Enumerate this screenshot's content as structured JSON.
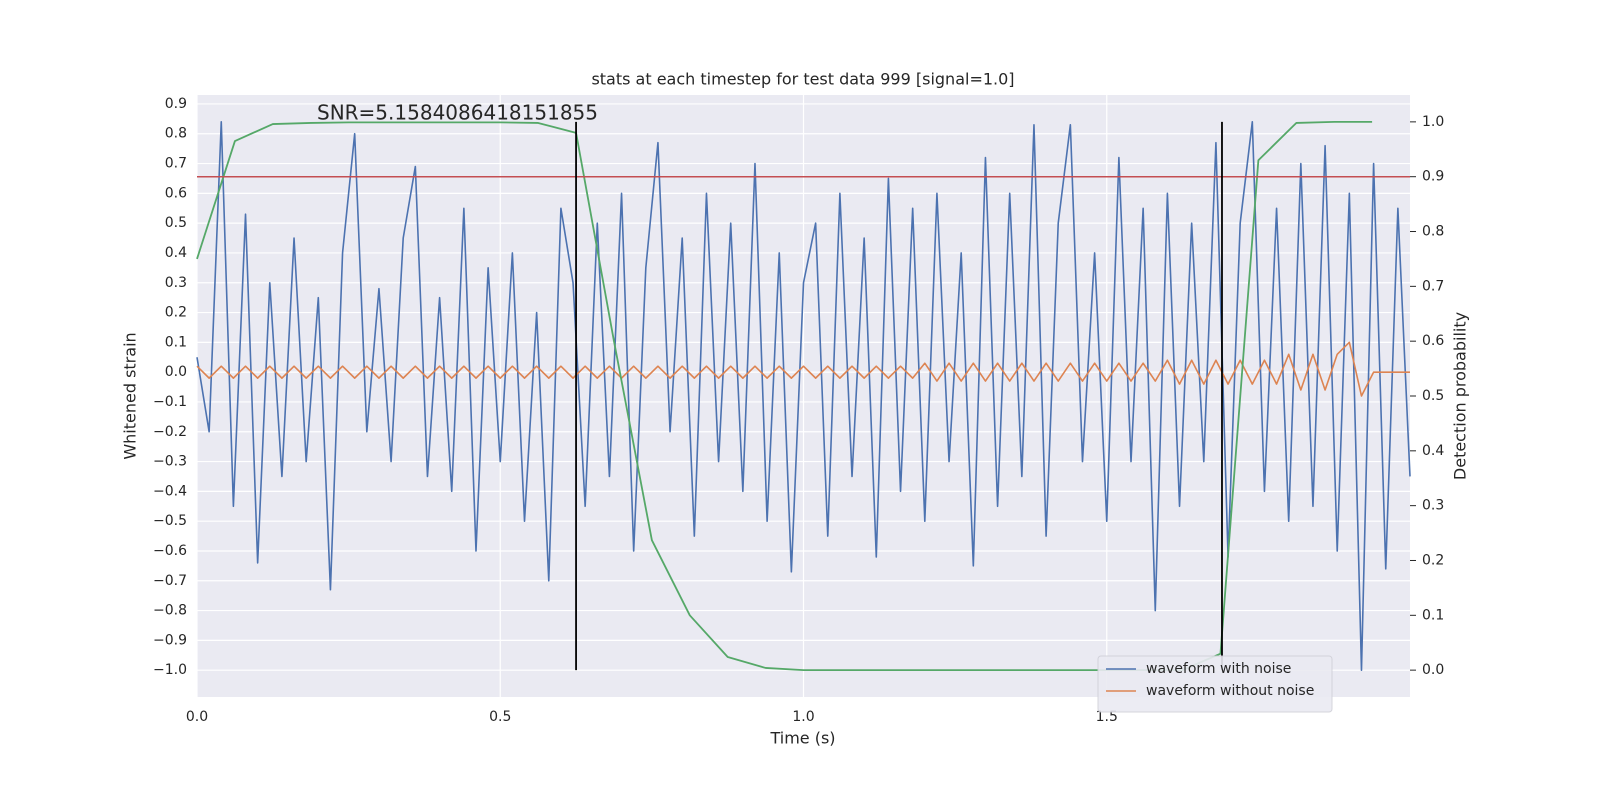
{
  "chart_data": {
    "type": "line",
    "title": "stats at each timestep for test data 999 [signal=1.0]",
    "annotation": "SNR=5.1584086418151855",
    "xlabel": "Time (s)",
    "ylabel": "Whitened strain",
    "y2label": "Detection probability",
    "xlim": [
      0,
      2.0
    ],
    "ylim": [
      -1.09,
      0.93
    ],
    "y2lim": [
      -0.049,
      1.049
    ],
    "xticks": [
      {
        "value": 0,
        "label": "0.0"
      },
      {
        "value": 0.5,
        "label": "0.5"
      },
      {
        "value": 1.0,
        "label": "1.0"
      },
      {
        "value": 1.5,
        "label": "1.5"
      }
    ],
    "yticks": [
      {
        "value": 0.9,
        "label": "0.9"
      },
      {
        "value": 0.8,
        "label": "0.8"
      },
      {
        "value": 0.7,
        "label": "0.7"
      },
      {
        "value": 0.6,
        "label": "0.6"
      },
      {
        "value": 0.5,
        "label": "0.5"
      },
      {
        "value": 0.4,
        "label": "0.4"
      },
      {
        "value": 0.3,
        "label": "0.3"
      },
      {
        "value": 0.2,
        "label": "0.2"
      },
      {
        "value": 0.1,
        "label": "0.1"
      },
      {
        "value": 0,
        "label": "0.0"
      },
      {
        "value": -0.1,
        "label": "−0.1"
      },
      {
        "value": -0.2,
        "label": "−0.2"
      },
      {
        "value": -0.3,
        "label": "−0.3"
      },
      {
        "value": -0.4,
        "label": "−0.4"
      },
      {
        "value": -0.5,
        "label": "−0.5"
      },
      {
        "value": -0.6,
        "label": "−0.6"
      },
      {
        "value": -0.7,
        "label": "−0.7"
      },
      {
        "value": -0.8,
        "label": "−0.8"
      },
      {
        "value": -0.9,
        "label": "−0.9"
      },
      {
        "value": -1.0,
        "label": "−1.0"
      }
    ],
    "y2ticks": [
      {
        "value": 0,
        "label": "0.0"
      },
      {
        "value": 0.1,
        "label": "0.1"
      },
      {
        "value": 0.2,
        "label": "0.2"
      },
      {
        "value": 0.3,
        "label": "0.3"
      },
      {
        "value": 0.4,
        "label": "0.4"
      },
      {
        "value": 0.5,
        "label": "0.5"
      },
      {
        "value": 0.6,
        "label": "0.6"
      },
      {
        "value": 0.7,
        "label": "0.7"
      },
      {
        "value": 0.8,
        "label": "0.8"
      },
      {
        "value": 0.9,
        "label": "0.9"
      },
      {
        "value": 1.0,
        "label": "1.0"
      }
    ],
    "grid": true,
    "legend": "lower right",
    "x": [
      0,
      0.02,
      0.04,
      0.06,
      0.08,
      0.1,
      0.12,
      0.14,
      0.16,
      0.18,
      0.2,
      0.22,
      0.24,
      0.26,
      0.28,
      0.3,
      0.32,
      0.34,
      0.36,
      0.38,
      0.4,
      0.42,
      0.44,
      0.46,
      0.48,
      0.5,
      0.52,
      0.54,
      0.56,
      0.58,
      0.6,
      0.62,
      0.64,
      0.66,
      0.68,
      0.7,
      0.72,
      0.74,
      0.76,
      0.78,
      0.8,
      0.82,
      0.84,
      0.86,
      0.88,
      0.9,
      0.92,
      0.94,
      0.96,
      0.98,
      1.0,
      1.02,
      1.04,
      1.06,
      1.08,
      1.1,
      1.12,
      1.14,
      1.16,
      1.18,
      1.2,
      1.22,
      1.24,
      1.26,
      1.28,
      1.3,
      1.32,
      1.34,
      1.36,
      1.38,
      1.4,
      1.42,
      1.44,
      1.46,
      1.48,
      1.5,
      1.52,
      1.54,
      1.56,
      1.58,
      1.6,
      1.62,
      1.64,
      1.66,
      1.68,
      1.7,
      1.72,
      1.74,
      1.76,
      1.78,
      1.8,
      1.82,
      1.84,
      1.86,
      1.88,
      1.9,
      1.92,
      1.94,
      1.96,
      1.98,
      2.0
    ],
    "series": [
      {
        "name": "waveform with noise",
        "color": "#4c72b0",
        "values": [
          0.05,
          -0.2,
          0.84,
          -0.45,
          0.53,
          -0.64,
          0.3,
          -0.35,
          0.45,
          -0.3,
          0.25,
          -0.73,
          0.4,
          0.8,
          -0.2,
          0.28,
          -0.3,
          0.45,
          0.69,
          -0.35,
          0.25,
          -0.4,
          0.55,
          -0.6,
          0.35,
          -0.3,
          0.4,
          -0.5,
          0.2,
          -0.7,
          0.55,
          0.3,
          -0.45,
          0.5,
          -0.35,
          0.6,
          -0.6,
          0.35,
          0.77,
          -0.2,
          0.45,
          -0.55,
          0.6,
          -0.3,
          0.5,
          -0.4,
          0.7,
          -0.5,
          0.4,
          -0.67,
          0.3,
          0.5,
          -0.55,
          0.6,
          -0.35,
          0.45,
          -0.62,
          0.65,
          -0.4,
          0.55,
          -0.5,
          0.6,
          -0.3,
          0.4,
          -0.65,
          0.72,
          -0.45,
          0.6,
          -0.35,
          0.83,
          -0.55,
          0.5,
          0.83,
          -0.3,
          0.4,
          -0.5,
          0.72,
          -0.3,
          0.55,
          -0.8,
          0.6,
          -0.45,
          0.5,
          -0.3,
          0.77,
          -0.62,
          0.5,
          0.84,
          -0.4,
          0.55,
          -0.5,
          0.7,
          -0.45,
          0.76,
          -0.6,
          0.6,
          -1.0,
          0.7,
          -0.66,
          0.55,
          -0.35
        ]
      },
      {
        "name": "waveform without noise",
        "color": "#dd8452",
        "values": [
          0.02,
          -0.02,
          0.02,
          -0.02,
          0.02,
          -0.02,
          0.02,
          -0.02,
          0.02,
          -0.02,
          0.02,
          -0.02,
          0.02,
          -0.02,
          0.02,
          -0.02,
          0.02,
          -0.02,
          0.02,
          -0.02,
          0.02,
          -0.02,
          0.02,
          -0.02,
          0.02,
          -0.02,
          0.02,
          -0.02,
          0.02,
          -0.02,
          0.02,
          -0.02,
          0.02,
          -0.02,
          0.02,
          -0.02,
          0.02,
          -0.02,
          0.02,
          -0.02,
          0.02,
          -0.02,
          0.02,
          -0.02,
          0.02,
          -0.02,
          0.02,
          -0.02,
          0.02,
          -0.02,
          0.02,
          -0.02,
          0.02,
          -0.02,
          0.02,
          -0.02,
          0.02,
          -0.02,
          0.02,
          -0.02,
          0.03,
          -0.03,
          0.03,
          -0.03,
          0.03,
          -0.03,
          0.03,
          -0.03,
          0.03,
          -0.03,
          0.03,
          -0.03,
          0.03,
          -0.03,
          0.03,
          -0.03,
          0.03,
          -0.03,
          0.03,
          -0.03,
          0.04,
          -0.04,
          0.04,
          -0.04,
          0.04,
          -0.04,
          0.04,
          -0.04,
          0.04,
          -0.04,
          0.06,
          -0.06,
          0.06,
          -0.06,
          0.06,
          0.1,
          -0.08,
          0,
          0,
          0,
          0
        ]
      },
      {
        "name": "detection probability",
        "color": "#55a868",
        "axis": "y2",
        "legend": false,
        "x": [
          0,
          0.0625,
          0.125,
          0.1875,
          0.25,
          0.3125,
          0.375,
          0.4375,
          0.5,
          0.5625,
          0.625,
          0.6875,
          0.75,
          0.8125,
          0.875,
          0.9375,
          1.0,
          1.0625,
          1.125,
          1.1875,
          1.25,
          1.3125,
          1.375,
          1.4375,
          1.5,
          1.5625,
          1.625,
          1.6875,
          1.75,
          1.8125,
          1.875,
          1.9375
        ],
        "values": [
          0.75,
          0.965,
          0.996,
          0.998,
          0.999,
          0.999,
          0.999,
          0.999,
          0.999,
          0.998,
          0.98,
          0.6,
          0.237,
          0.1,
          0.024,
          0.004,
          0,
          0,
          0,
          0,
          0,
          0,
          0,
          0,
          0,
          0,
          0,
          0.03,
          0.93,
          0.998,
          1.0,
          1.0
        ]
      }
    ],
    "threshold": {
      "value": 0.9,
      "axis": "y2",
      "color": "#c44e52"
    },
    "vlines": {
      "x": [
        0.625,
        1.69
      ],
      "color": "#000000"
    }
  }
}
